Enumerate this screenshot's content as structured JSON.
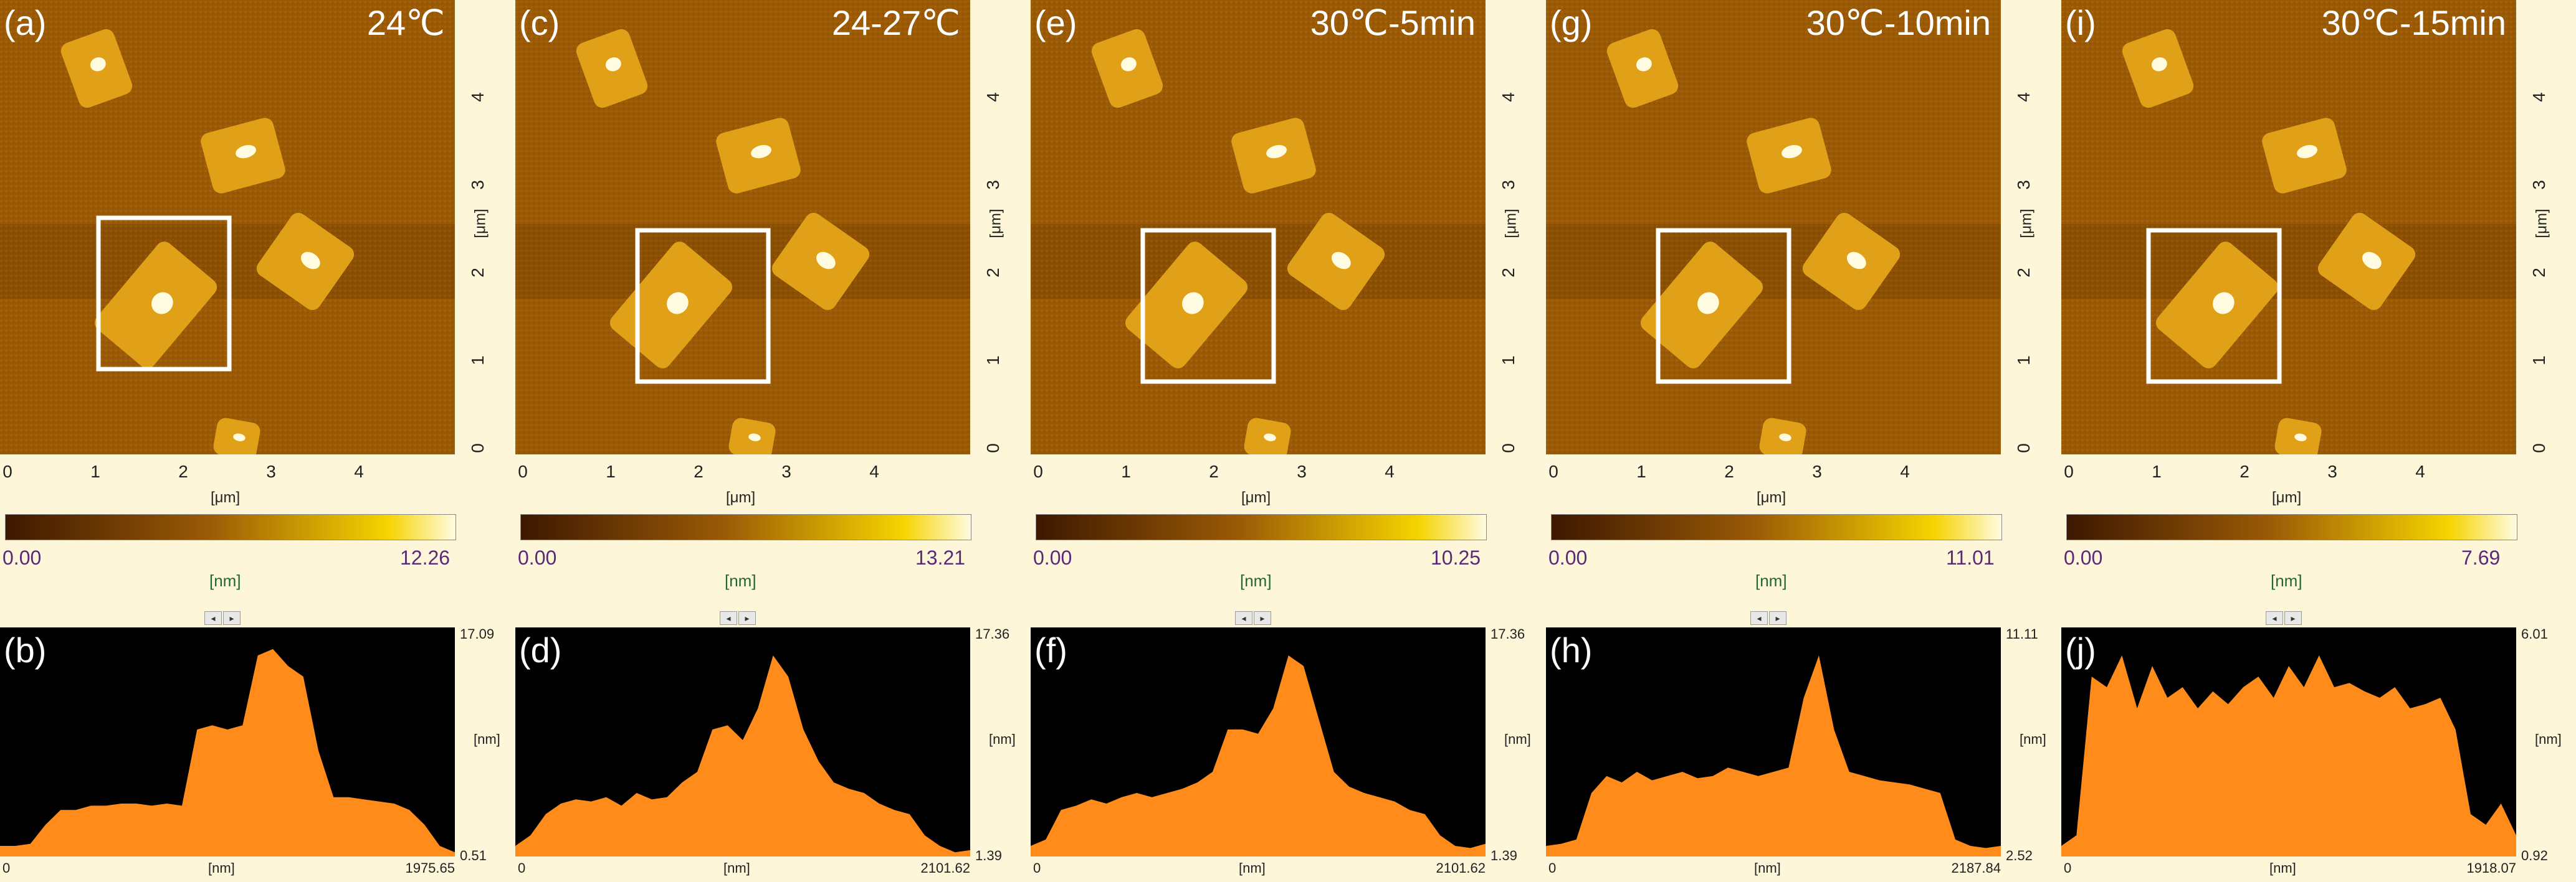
{
  "panels": [
    {
      "image_letter": "(a)",
      "temp": "24℃",
      "scale_min": "0.00",
      "scale_max": "12.26",
      "scale_unit": "[nm]",
      "profile_letter": "(b)",
      "profile_ymax": "17.09",
      "profile_ymin": "0.51",
      "profile_x0": "0",
      "profile_xunit": "[nm]",
      "profile_xmax": "1975.65",
      "profile_yunit": "[nm]",
      "x_ticks": [
        "0",
        "1",
        "2",
        "3",
        "4"
      ],
      "y_ticks": [
        "0",
        "1",
        "2",
        "3",
        "4"
      ],
      "x_unit": "[μm]",
      "y_unit": "[μm]"
    },
    {
      "image_letter": "(c)",
      "temp": "24-27℃",
      "scale_min": "0.00",
      "scale_max": "13.21",
      "scale_unit": "[nm]",
      "profile_letter": "(d)",
      "profile_ymax": "17.36",
      "profile_ymin": "1.39",
      "profile_x0": "0",
      "profile_xunit": "[nm]",
      "profile_xmax": "2101.62",
      "profile_yunit": "[nm]",
      "x_ticks": [
        "0",
        "1",
        "2",
        "3",
        "4"
      ],
      "y_ticks": [
        "0",
        "1",
        "2",
        "3",
        "4"
      ],
      "x_unit": "[μm]",
      "y_unit": "[μm]"
    },
    {
      "image_letter": "(e)",
      "temp": "30℃-5min",
      "scale_min": "0.00",
      "scale_max": "10.25",
      "scale_unit": "[nm]",
      "profile_letter": "(f)",
      "profile_ymax": "17.36",
      "profile_ymin": "1.39",
      "profile_x0": "0",
      "profile_xunit": "[nm]",
      "profile_xmax": "2101.62",
      "profile_yunit": "[nm]",
      "x_ticks": [
        "0",
        "1",
        "2",
        "3",
        "4"
      ],
      "y_ticks": [
        "0",
        "1",
        "2",
        "3",
        "4"
      ],
      "x_unit": "[μm]",
      "y_unit": "[μm]"
    },
    {
      "image_letter": "(g)",
      "temp": "30℃-10min",
      "scale_min": "0.00",
      "scale_max": "11.01",
      "scale_unit": "[nm]",
      "profile_letter": "(h)",
      "profile_ymax": "11.11",
      "profile_ymin": "2.52",
      "profile_x0": "0",
      "profile_xunit": "[nm]",
      "profile_xmax": "2187.84",
      "profile_yunit": "[nm]",
      "x_ticks": [
        "0",
        "1",
        "2",
        "3",
        "4"
      ],
      "y_ticks": [
        "0",
        "1",
        "2",
        "3",
        "4"
      ],
      "x_unit": "[μm]",
      "y_unit": "[μm]"
    },
    {
      "image_letter": "(i)",
      "temp": "30℃-15min",
      "scale_min": "0.00",
      "scale_max": "7.69",
      "scale_unit": "[nm]",
      "profile_letter": "(j)",
      "profile_ymax": "6.01",
      "profile_ymin": "0.92",
      "profile_x0": "0",
      "profile_xunit": "[nm]",
      "profile_xmax": "1918.07",
      "profile_yunit": "[nm]",
      "x_ticks": [
        "0",
        "1",
        "2",
        "3",
        "4"
      ],
      "y_ticks": [
        "0",
        "1",
        "2",
        "3",
        "4"
      ],
      "x_unit": "[μm]",
      "y_unit": "[μm]"
    }
  ],
  "scroll_buttons": {
    "left": "◂",
    "right": "▸"
  },
  "colors": {
    "afm_dark": "#3d1800",
    "afm_mid": "#9a5a06",
    "afm_bright": "#f5d400",
    "afm_white": "#fffbe0",
    "profile_fill": "#ff8c1a",
    "profile_bg": "#000000",
    "box": "#ffffff"
  }
}
